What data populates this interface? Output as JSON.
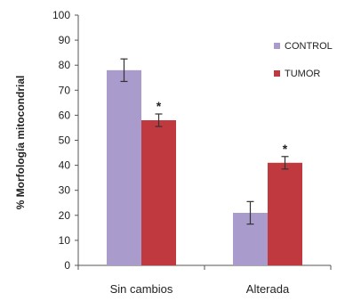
{
  "chart_data": {
    "type": "bar",
    "ylabel": "% Morfología mitocondrial",
    "ylim": [
      0,
      100
    ],
    "yticks": [
      0,
      10,
      20,
      30,
      40,
      50,
      60,
      70,
      80,
      90,
      100
    ],
    "categories": [
      "Sin cambios",
      "Alterada"
    ],
    "series": [
      {
        "name": "CONTROL",
        "color": "#a99bcc",
        "values": [
          78,
          21
        ],
        "errors": [
          4.5,
          4.5
        ]
      },
      {
        "name": "TUMOR",
        "color": "#c0393f",
        "values": [
          58,
          41
        ],
        "errors": [
          2.5,
          2.5
        ]
      }
    ],
    "annotations": [
      {
        "text": "*",
        "category": 0,
        "series": 1
      },
      {
        "text": "*",
        "category": 1,
        "series": 1
      }
    ],
    "legend": "right",
    "grid": false
  }
}
